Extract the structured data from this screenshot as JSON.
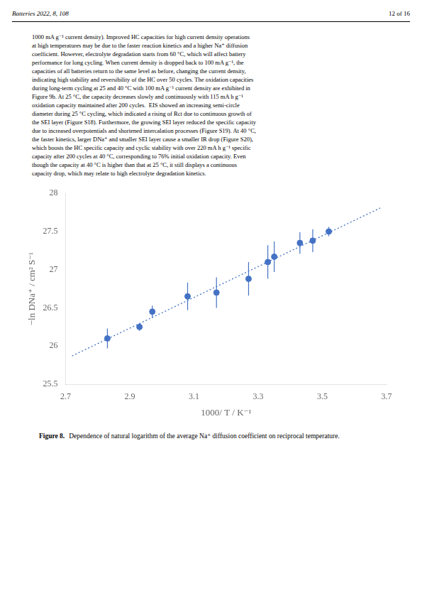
{
  "chart_data": {
    "type": "scatter",
    "xlabel": "1000/ T / K⁻¹",
    "ylabel": "−ln DNa⁺ / cm² S⁻¹",
    "xlim": [
      2.7,
      3.7
    ],
    "xticks": [
      2.7,
      2.9,
      3.1,
      3.3,
      3.5,
      3.7
    ],
    "ylim": [
      25.5,
      28.0
    ],
    "yticks": [
      25.5,
      26,
      26.5,
      27,
      27.5,
      28
    ],
    "grid": false,
    "annotations": [
      "Batteries 2022, 8, 108",
      "12 of 16",
      "1000 mA g⁻¹ current density). Improved HC capacities for high current density operations",
      "at high temperatures may be due to the faster reaction kinetics and a higher Na⁺ diffusion",
      "coefficient. However, electrolyte degradation starts from 60 °C, which will affect battery",
      "performance for long cycling. When current density is dropped back to 100 mA g⁻¹, the",
      "capacities of all batteries return to the same level as before, changing the current density,",
      "indicating high stability and reversibility of the HC over 50 cycles. The oxidation capacities",
      "during long-term cycling at 25 and 40 °C with 100 mA g⁻¹ current density are exhibited in",
      "Figure 9b. At 25 °C, the capacity decreases slowly and continuously with 115 mA h g⁻¹",
      "oxidation capacity maintained after 200 cycles.  EIS showed an increasing semi-circle",
      "diameter during 25 °C cycling, which indicated a rising of Rct due to continuous growth of",
      "the SEI layer (Figure S18). Furthermore, the growing SEI layer reduced the specific capacity",
      "due to increased overpotentials and shortened intercalation processes (Figure S19). At 40 °C,",
      "the faster kinetics, larger DNa⁺ and smaller SEI layer cause a smaller IR drop (Figure S20),",
      "which boosts the HC specific capacity and cyclic stability with over 220 mA h g⁻¹ specific",
      "capacity after 200 cycles at 40 °C, corresponding to 76% initial oxidation capacity. Even",
      "though the capacity at 40 °C is higher than that at 25 °C, it still displays a continuous",
      "capacity drop, which may relate to high electrolyte degradation kinetics.",
      "Figure 8.",
      "Dependence of natural logarithm of the average Na⁺ diffusion coefficient on reciprocal temperature."
    ],
    "series": [
      {
        "type": "scatter",
        "marker": "circle",
        "color": "#4472C4",
        "x": [
          2.83,
          2.93,
          2.97,
          3.08,
          3.17,
          3.27,
          3.33,
          3.35,
          3.43,
          3.47,
          3.52
        ],
        "values": [
          26.1,
          26.25,
          26.45,
          26.65,
          26.7,
          26.88,
          27.1,
          27.17,
          27.35,
          27.38,
          27.5
        ],
        "yerr": [
          0.13,
          0.05,
          0.08,
          0.18,
          0.2,
          0.22,
          0.22,
          0.2,
          0.14,
          0.15,
          0.06
        ]
      },
      {
        "type": "line",
        "line_style": "dotted",
        "color": "#4472C4",
        "x": [
          2.72,
          3.68
        ],
        "values": [
          25.871,
          27.807
        ]
      }
    ]
  }
}
